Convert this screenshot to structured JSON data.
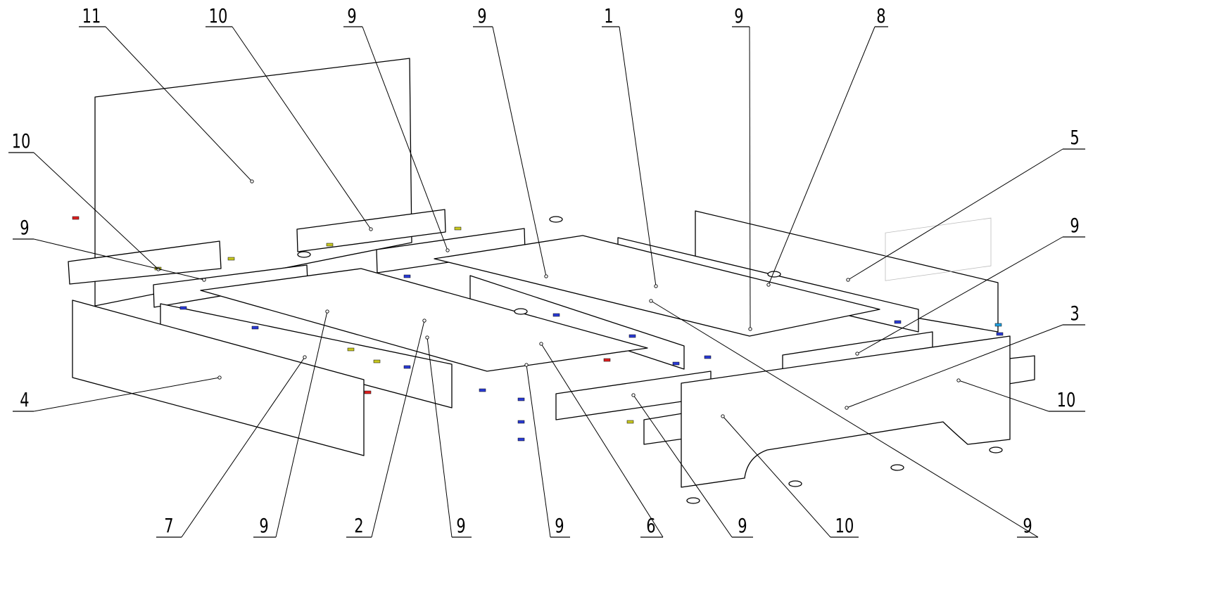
{
  "title": "",
  "callouts": [
    "11",
    "10",
    "9",
    "9",
    "1",
    "9",
    "8",
    "5",
    "9",
    "3",
    "10",
    "10",
    "9",
    "4",
    "7",
    "9",
    "2",
    "9",
    "9",
    "6",
    "9",
    "10",
    "9"
  ],
  "colors": {
    "line": "#000000",
    "fastener_blue": "#2a3bd6",
    "fastener_red": "#e02020",
    "fastener_yellow": "#c8c820",
    "fastener_cyan": "#20a0e0"
  }
}
